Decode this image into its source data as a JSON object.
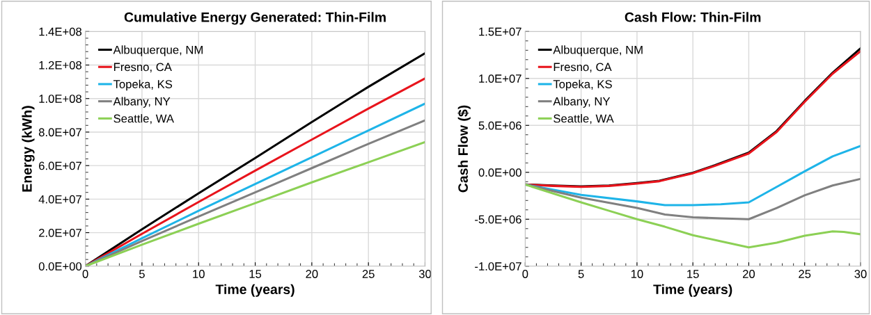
{
  "chart_data": [
    {
      "type": "line",
      "title": "Cumulative Energy Generated: Thin-Film",
      "xlabel": "Time (years)",
      "ylabel": "Energy (kWh)",
      "x": [
        0,
        5,
        10,
        15,
        20,
        25,
        30
      ],
      "series": [
        {
          "name": "Albuquerque, NM",
          "color": "#000000",
          "values": [
            0,
            22000000,
            43500000,
            64500000,
            86000000,
            107000000,
            127000000
          ]
        },
        {
          "name": "Fresno, CA",
          "color": "#e8141c",
          "values": [
            0,
            19300000,
            38300000,
            57000000,
            75500000,
            94000000,
            112000000
          ]
        },
        {
          "name": "Topeka, KS",
          "color": "#1eb4e8",
          "values": [
            0,
            16700000,
            33000000,
            49000000,
            65000000,
            81000000,
            97000000
          ]
        },
        {
          "name": "Albany, NY",
          "color": "#808080",
          "values": [
            0,
            15000000,
            29600000,
            44000000,
            58500000,
            73000000,
            87000000
          ]
        },
        {
          "name": "Seattle, WA",
          "color": "#8cd055",
          "values": [
            0,
            12800000,
            25300000,
            37600000,
            50000000,
            62000000,
            74000000
          ]
        }
      ],
      "xlim": [
        0,
        30
      ],
      "xticks": [
        0,
        5,
        10,
        15,
        20,
        25,
        30
      ],
      "ylim": [
        0,
        140000000
      ],
      "yticks": [
        {
          "value": 0,
          "label": "0.0E+00"
        },
        {
          "value": 20000000,
          "label": "2.0E+07"
        },
        {
          "value": 40000000,
          "label": "4.0E+07"
        },
        {
          "value": 60000000,
          "label": "6.0E+07"
        },
        {
          "value": 80000000,
          "label": "8.0E+07"
        },
        {
          "value": 100000000,
          "label": "1.0E+08"
        },
        {
          "value": 120000000,
          "label": "1.2E+08"
        },
        {
          "value": 140000000,
          "label": "1.4E+08"
        }
      ],
      "grid": true,
      "legend": "top left",
      "marker": "none",
      "line_style": "solid"
    },
    {
      "type": "line",
      "title": "Cash Flow: Thin-Film",
      "xlabel": "Time (years)",
      "ylabel": "Cash Flow ($)",
      "series": [
        {
          "name": "Albuquerque, NM",
          "color": "#000000",
          "x": [
            0,
            2.5,
            5,
            7.5,
            10,
            12,
            15,
            17,
            20,
            22.5,
            25,
            27.5,
            30
          ],
          "values": [
            -1300000,
            -1400000,
            -1500000,
            -1400000,
            -1150000,
            -900000,
            -50000,
            770000,
            2100000,
            4400000,
            7600000,
            10600000,
            13200000
          ]
        },
        {
          "name": "Fresno, CA",
          "color": "#e8141c",
          "x": [
            0,
            2.5,
            5,
            7.5,
            10,
            12,
            15,
            17,
            20,
            22.5,
            25,
            27.5,
            30
          ],
          "values": [
            -1300000,
            -1450000,
            -1550000,
            -1450000,
            -1200000,
            -950000,
            -100000,
            700000,
            2000000,
            4300000,
            7500000,
            10500000,
            12900000
          ]
        },
        {
          "name": "Topeka, KS",
          "color": "#1eb4e8",
          "x": [
            0,
            5,
            10,
            12.5,
            15,
            17.5,
            20,
            22.5,
            25,
            27.5,
            30
          ],
          "values": [
            -1300000,
            -2400000,
            -3100000,
            -3500000,
            -3500000,
            -3400000,
            -3200000,
            -1550000,
            100000,
            1700000,
            2800000
          ]
        },
        {
          "name": "Albany, NY",
          "color": "#808080",
          "x": [
            0,
            5,
            10,
            12.5,
            15,
            17.5,
            20,
            22.5,
            25,
            27.5,
            30
          ],
          "values": [
            -1300000,
            -2700000,
            -3800000,
            -4500000,
            -4800000,
            -4900000,
            -5000000,
            -3800000,
            -2450000,
            -1400000,
            -700000
          ]
        },
        {
          "name": "Seattle, WA",
          "color": "#8cd055",
          "x": [
            0,
            5,
            7.5,
            10,
            12.5,
            15,
            17.5,
            20,
            22.5,
            25,
            27.5,
            28.5,
            30
          ],
          "values": [
            -1300000,
            -3200000,
            -4100000,
            -5000000,
            -5800000,
            -6700000,
            -7350000,
            -8000000,
            -7500000,
            -6750000,
            -6300000,
            -6350000,
            -6600000
          ]
        }
      ],
      "xlim": [
        0,
        30
      ],
      "xticks": [
        0,
        5,
        10,
        15,
        20,
        25,
        30
      ],
      "ylim": [
        -10000000,
        15000000
      ],
      "yticks": [
        {
          "value": -10000000,
          "label": "-1.0E+07"
        },
        {
          "value": -5000000,
          "label": "-5.0E+06"
        },
        {
          "value": 0,
          "label": "0.0E+00"
        },
        {
          "value": 5000000,
          "label": "5.0E+06"
        },
        {
          "value": 10000000,
          "label": "1.0E+07"
        },
        {
          "value": 15000000,
          "label": "1.5E+07"
        }
      ],
      "grid": true,
      "legend": "top left",
      "marker": "none",
      "line_style": "solid"
    }
  ]
}
